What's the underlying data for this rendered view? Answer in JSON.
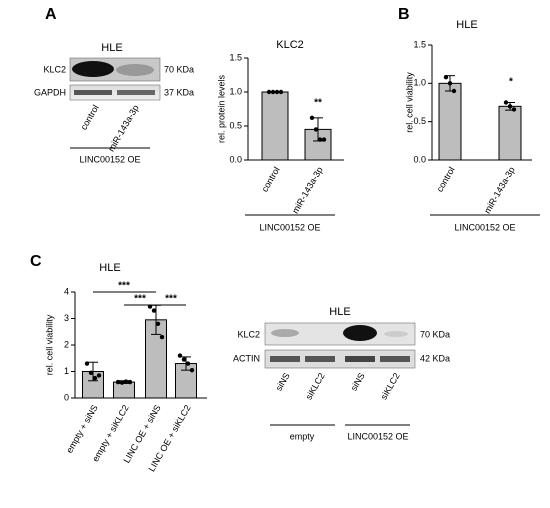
{
  "panel_labels": [
    "A",
    "B",
    "C"
  ],
  "blot_a": {
    "title": "HLE",
    "rows": [
      {
        "name": "KLC2",
        "size": "70 KDa"
      },
      {
        "name": "GAPDH",
        "size": "37 KDa"
      }
    ],
    "lanes": [
      "control",
      "miR-143a-3p"
    ],
    "group": "LINC00152 OE"
  },
  "blot_c": {
    "title": "HLE",
    "rows": [
      {
        "name": "KLC2",
        "size": "70 KDa"
      },
      {
        "name": "ACTIN",
        "size": "42 KDa"
      }
    ],
    "lanes": [
      "siNS",
      "siKLC2",
      "siNS",
      "siKLC2"
    ],
    "groups": [
      "empty",
      "LINC00152 OE"
    ]
  },
  "chart_data": [
    {
      "type": "bar",
      "title": "KLC2",
      "ylabel": "rel. protein levels",
      "categories": [
        "control",
        "miR-143a-3p"
      ],
      "values": [
        1.0,
        0.45
      ],
      "errors": [
        0,
        0.17
      ],
      "points": [
        [
          1,
          1,
          1,
          1
        ],
        [
          0.62,
          0.45,
          0.3,
          0.3
        ]
      ],
      "color": "#bdbdbd",
      "ylim": [
        0,
        1.5
      ],
      "yticks": [
        {
          "value": 0,
          "label": "0.0"
        },
        {
          "value": 0.5,
          "label": "0.5"
        },
        {
          "value": 1,
          "label": "1.0"
        },
        {
          "value": 1.5,
          "label": "1.5"
        }
      ],
      "group": "LINC00152 OE",
      "annotations": [
        {
          "text": "**"
        }
      ]
    },
    {
      "type": "bar",
      "title": "HLE",
      "ylabel": "rel. cell viability",
      "categories": [
        "control",
        "miR-143a-3p"
      ],
      "values": [
        1.0,
        0.7
      ],
      "errors": [
        0.1,
        0.05
      ],
      "points": [
        [
          1.08,
          1.0,
          0.9
        ],
        [
          0.75,
          0.7,
          0.66
        ]
      ],
      "color": "#bdbdbd",
      "ylim": [
        0,
        1.5
      ],
      "yticks": [
        {
          "value": 0,
          "label": "0.0"
        },
        {
          "value": 0.5,
          "label": "0.5"
        },
        {
          "value": 1,
          "label": "1.0"
        },
        {
          "value": 1.5,
          "label": "1.5"
        }
      ],
      "group": "LINC00152 OE",
      "annotations": [
        {
          "text": "*"
        }
      ]
    },
    {
      "type": "bar",
      "title": "HLE",
      "ylabel": "rel. cell viability",
      "categories": [
        "empty + siNS",
        "empty + siKLC2",
        "LINC OE + siNS",
        "LINC OE + siKLC2"
      ],
      "values": [
        1.0,
        0.6,
        2.95,
        1.3
      ],
      "errors": [
        0.35,
        0.05,
        0.55,
        0.25
      ],
      "points": [
        [
          1.3,
          0.95,
          0.75,
          0.85
        ],
        [
          0.6,
          0.58,
          0.62,
          0.6
        ],
        [
          3.45,
          3.3,
          2.8,
          2.3
        ],
        [
          1.6,
          1.45,
          1.3,
          1.05
        ]
      ],
      "color": "#bdbdbd",
      "ylim": [
        0,
        4
      ],
      "yticks": [
        0,
        1,
        2,
        3,
        4
      ],
      "annotations": [
        {
          "text": "***"
        },
        {
          "text": "***"
        },
        {
          "text": "***"
        }
      ]
    }
  ]
}
